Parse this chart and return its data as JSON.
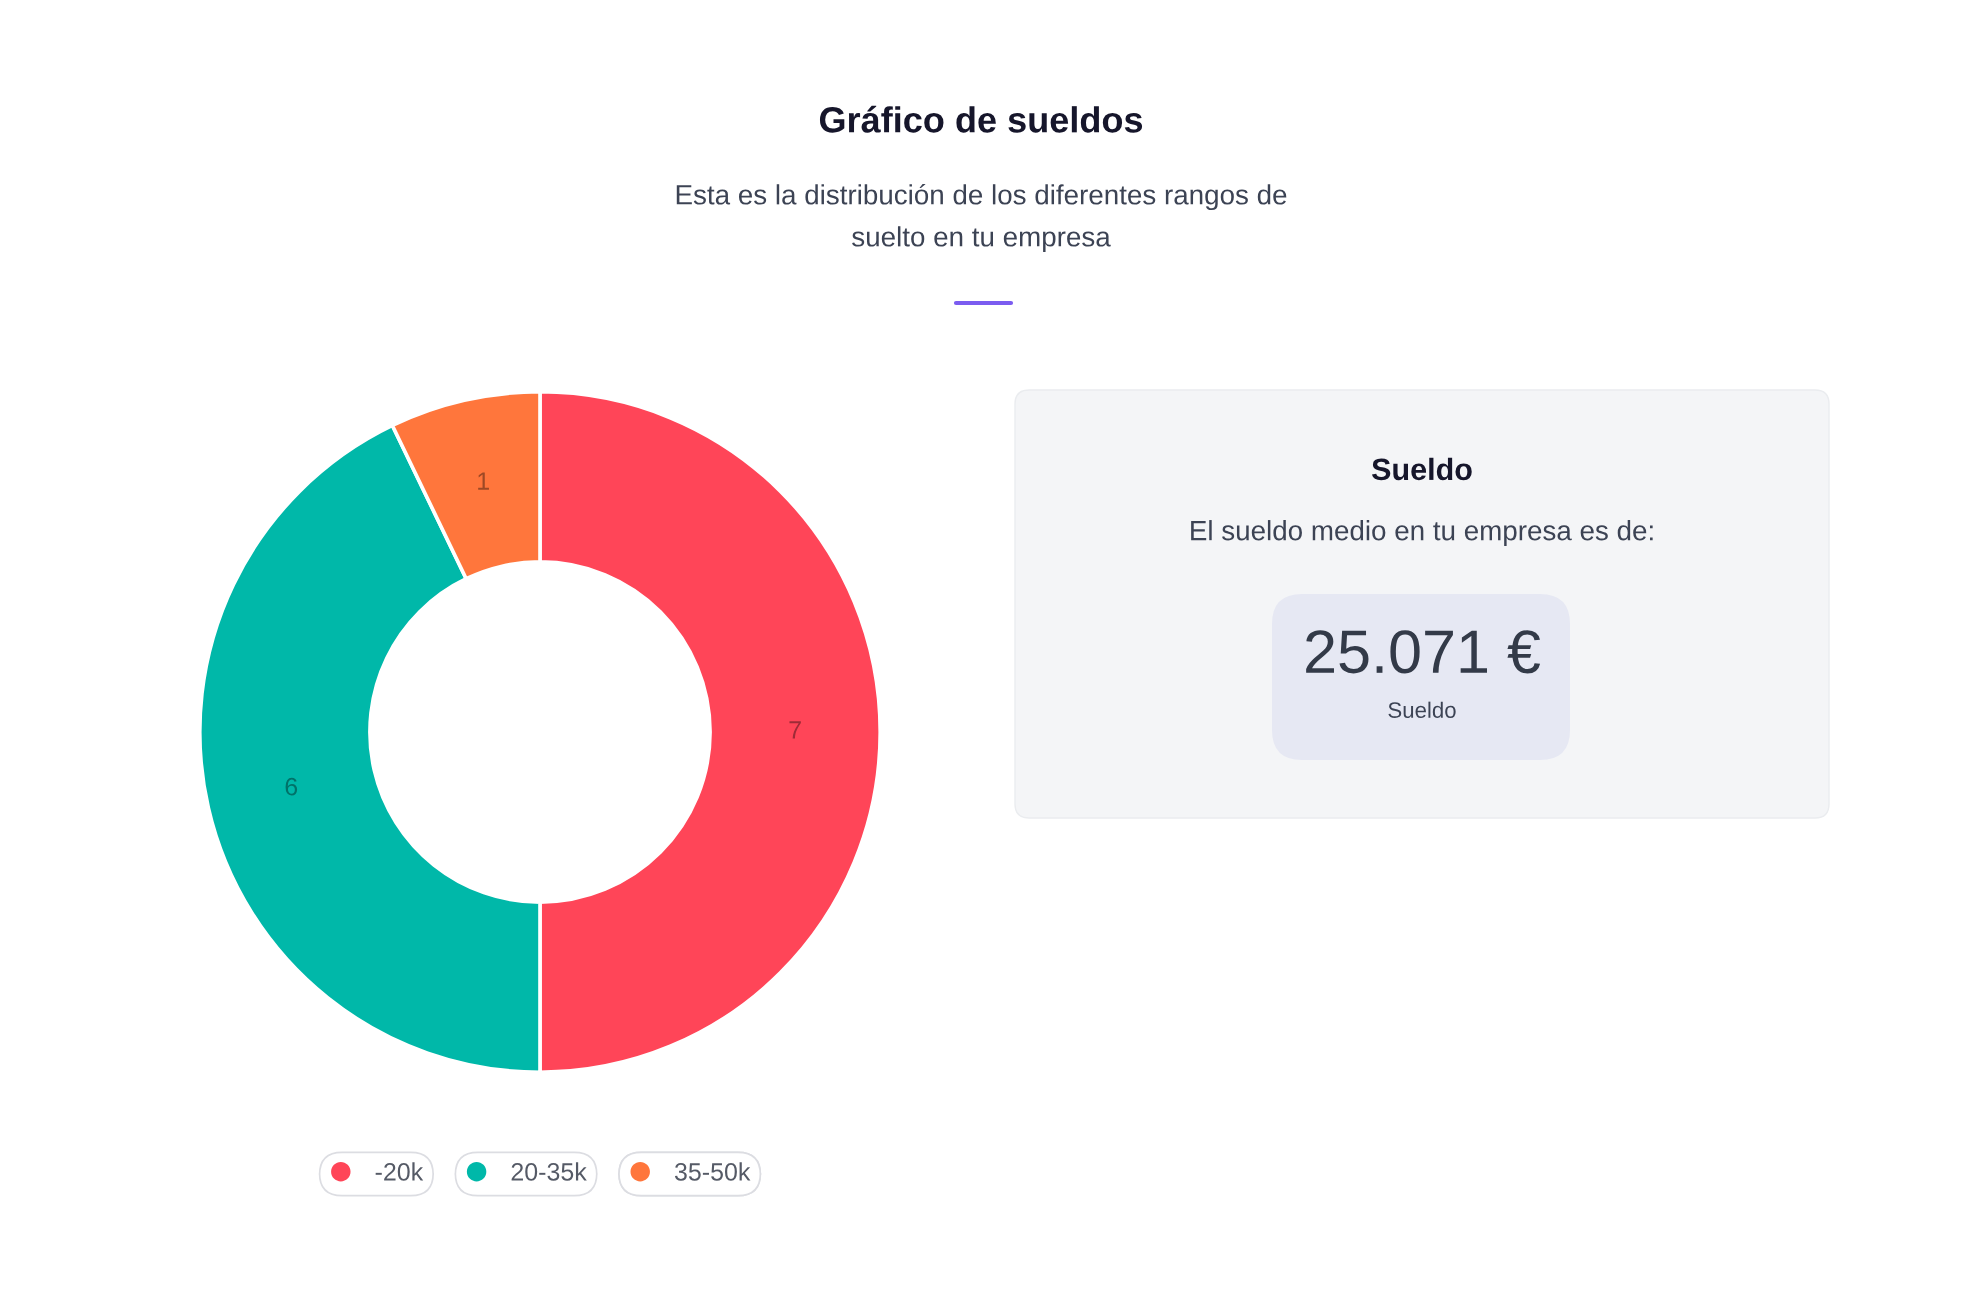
{
  "chart_data": [
    {
      "type": "donut",
      "title": "Gráfico de sueldos",
      "subtitle": "Esta es la distribución de los diferentes rangos de suelto en tu empresa",
      "categories": [
        "-20k",
        "20-35k",
        "35-50k"
      ],
      "values": [
        7,
        6,
        1
      ],
      "colors": [
        "#ff4558",
        "#00b8a9",
        "#ff763c"
      ],
      "data_labels": true,
      "legend": "bottom"
    },
    {
      "type": "other",
      "title": "Sueldo",
      "subtitle": "El sueldo medio en tu empresa es de:",
      "annotations": [
        "25.071 €",
        "Sueldo"
      ]
    }
  ]
}
